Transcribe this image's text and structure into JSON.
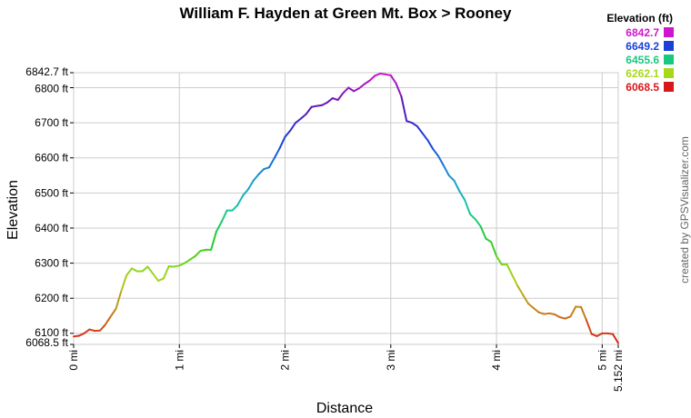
{
  "chart_data": {
    "type": "line",
    "title": "William F. Hayden at Green Mt. Box > Rooney",
    "xlabel": "Distance",
    "ylabel": "Elevation",
    "xlim": [
      0,
      5.152
    ],
    "ylim": [
      6068.5,
      6842.7
    ],
    "x_ticks": [
      {
        "value": 0,
        "label": "0 mi"
      },
      {
        "value": 1,
        "label": "1 mi"
      },
      {
        "value": 2,
        "label": "2 mi"
      },
      {
        "value": 3,
        "label": "3 mi"
      },
      {
        "value": 4,
        "label": "4 mi"
      },
      {
        "value": 5,
        "label": "5 mi"
      },
      {
        "value": 5.152,
        "label": "5.152 mi"
      }
    ],
    "y_ticks": [
      {
        "value": 6068.5,
        "label": "6068.5 ft"
      },
      {
        "value": 6100,
        "label": "6100 ft"
      },
      {
        "value": 6200,
        "label": "6200 ft"
      },
      {
        "value": 6300,
        "label": "6300 ft"
      },
      {
        "value": 6400,
        "label": "6400 ft"
      },
      {
        "value": 6500,
        "label": "6500 ft"
      },
      {
        "value": 6600,
        "label": "6600 ft"
      },
      {
        "value": 6700,
        "label": "6700 ft"
      },
      {
        "value": 6800,
        "label": "6800 ft"
      },
      {
        "value": 6842.7,
        "label": "6842.7 ft"
      }
    ],
    "grid": true,
    "legend": {
      "title": "Elevation (ft)",
      "position": "top-right",
      "entries": [
        {
          "label": "6842.7",
          "color": "#d015d0"
        },
        {
          "label": "6649.2",
          "color": "#1b40d8"
        },
        {
          "label": "6455.6",
          "color": "#18c882"
        },
        {
          "label": "6262.1",
          "color": "#a8d81a"
        },
        {
          "label": "6068.5",
          "color": "#d81818"
        }
      ]
    },
    "color_scale": [
      {
        "elev": 6068.5,
        "color": "#d81818"
      },
      {
        "elev": 6165,
        "color": "#c8821a"
      },
      {
        "elev": 6262.1,
        "color": "#a8d81a"
      },
      {
        "elev": 6358,
        "color": "#28cc28"
      },
      {
        "elev": 6455.6,
        "color": "#18c8a0"
      },
      {
        "elev": 6552,
        "color": "#1890d8"
      },
      {
        "elev": 6649.2,
        "color": "#1b40d8"
      },
      {
        "elev": 6745,
        "color": "#5a18b8"
      },
      {
        "elev": 6842.7,
        "color": "#d015d0"
      }
    ],
    "series": [
      {
        "x": [
          0,
          0.05,
          0.1,
          0.15,
          0.2,
          0.25,
          0.3,
          0.35,
          0.4,
          0.45,
          0.5,
          0.55,
          0.6,
          0.65,
          0.7,
          0.75,
          0.8,
          0.85,
          0.9,
          0.95,
          1.0,
          1.05,
          1.1,
          1.15,
          1.2,
          1.25,
          1.3,
          1.35,
          1.4,
          1.45,
          1.5,
          1.55,
          1.6,
          1.65,
          1.7,
          1.75,
          1.8,
          1.85,
          1.9,
          1.95,
          2.0,
          2.05,
          2.1,
          2.15,
          2.2,
          2.25,
          2.3,
          2.35,
          2.4,
          2.45,
          2.5,
          2.55,
          2.6,
          2.65,
          2.7,
          2.75,
          2.8,
          2.85,
          2.9,
          2.95,
          3.0,
          3.05,
          3.1,
          3.15,
          3.2,
          3.25,
          3.3,
          3.35,
          3.4,
          3.45,
          3.5,
          3.55,
          3.6,
          3.65,
          3.7,
          3.75,
          3.8,
          3.85,
          3.9,
          3.95,
          4.0,
          4.05,
          4.1,
          4.15,
          4.2,
          4.25,
          4.3,
          4.35,
          4.4,
          4.45,
          4.5,
          4.55,
          4.6,
          4.65,
          4.7,
          4.75,
          4.8,
          4.85,
          4.9,
          4.95,
          5.0,
          5.05,
          5.1,
          5.152
        ],
        "y": [
          6091,
          6093,
          6100,
          6111,
          6107,
          6108,
          6125,
          6148,
          6170,
          6220,
          6265,
          6285,
          6277,
          6277,
          6290,
          6270,
          6250,
          6256,
          6291,
          6290,
          6293,
          6300,
          6310,
          6320,
          6335,
          6338,
          6338,
          6390,
          6418,
          6450,
          6450,
          6465,
          6492,
          6510,
          6535,
          6553,
          6568,
          6573,
          6600,
          6628,
          6660,
          6678,
          6700,
          6712,
          6725,
          6745,
          6748,
          6750,
          6758,
          6770,
          6765,
          6785,
          6800,
          6790,
          6798,
          6810,
          6820,
          6834,
          6840,
          6838,
          6835,
          6812,
          6775,
          6705,
          6700,
          6690,
          6670,
          6650,
          6625,
          6605,
          6578,
          6550,
          6535,
          6505,
          6480,
          6440,
          6425,
          6405,
          6370,
          6360,
          6320,
          6296,
          6296,
          6265,
          6235,
          6210,
          6185,
          6172,
          6160,
          6155,
          6157,
          6154,
          6146,
          6142,
          6148,
          6176,
          6175,
          6138,
          6098,
          6092,
          6100,
          6100,
          6098,
          6072
        ]
      }
    ]
  },
  "credit": "created by GPSVisualizer.com",
  "colors": {
    "grid": "#cccccc",
    "axis": "#000000"
  }
}
